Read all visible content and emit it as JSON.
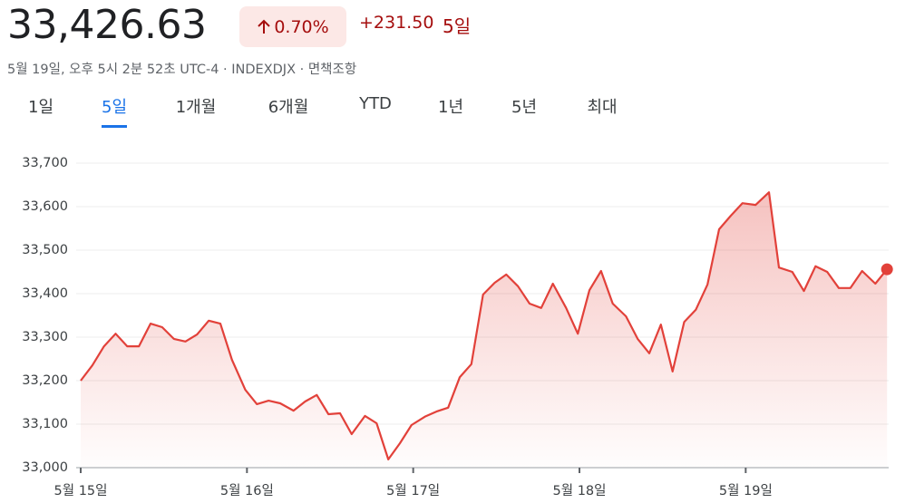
{
  "header": {
    "price": "33,426.63",
    "change_percent": "0.70%",
    "change": "+231.50",
    "period": "5일",
    "subtitle": "5월 19일, 오후 5시 2분 52초 UTC-4 · INDEXDJX · 면책조항"
  },
  "tabs": [
    "1일",
    "5일",
    "1개월",
    "6개월",
    "YTD",
    "1년",
    "5년",
    "최대"
  ],
  "selected_tab": 1,
  "chart_data": {
    "type": "line",
    "color": "#e2413a",
    "x": [
      0,
      0.07,
      0.14,
      0.21,
      0.28,
      0.35,
      0.42,
      0.49,
      0.56,
      0.63,
      0.7,
      0.77,
      0.84,
      0.91,
      0.99,
      1.06,
      1.13,
      1.2,
      1.28,
      1.35,
      1.42,
      1.49,
      1.56,
      1.63,
      1.71,
      1.78,
      1.85,
      1.92,
      1.99,
      2.07,
      2.14,
      2.21,
      2.28,
      2.35,
      2.42,
      2.49,
      2.56,
      2.63,
      2.7,
      2.77,
      2.84,
      2.92,
      2.99,
      3.06,
      3.13,
      3.2,
      3.28,
      3.35,
      3.42,
      3.49,
      3.56,
      3.63,
      3.7,
      3.77,
      3.84,
      3.91,
      3.98,
      4.06,
      4.14,
      4.2,
      4.28,
      4.35,
      4.42,
      4.49,
      4.56,
      4.63,
      4.7,
      4.78,
      4.85
    ],
    "values": [
      33200,
      33235,
      33279,
      33308,
      33279,
      33279,
      33331,
      33323,
      33296,
      33290,
      33306,
      33338,
      33331,
      33248,
      33179,
      33146,
      33154,
      33148,
      33131,
      33152,
      33167,
      33123,
      33125,
      33077,
      33119,
      33102,
      33019,
      33056,
      33098,
      33117,
      33129,
      33138,
      33208,
      33238,
      33398,
      33425,
      33444,
      33417,
      33377,
      33367,
      33423,
      33367,
      33308,
      33408,
      33452,
      33377,
      33348,
      33296,
      33263,
      33329,
      33221,
      33335,
      33363,
      33421,
      33548,
      33579,
      33608,
      33604,
      33633,
      33460,
      33450,
      33406,
      33463,
      33450,
      33413,
      33413,
      33452,
      33423,
      33456
    ],
    "xlim": [
      0,
      4.86
    ],
    "ylim": [
      33000,
      33700
    ],
    "xticks": [
      {
        "value": 0,
        "label": "5월 15일"
      },
      {
        "value": 1,
        "label": "5월 16일"
      },
      {
        "value": 2,
        "label": "5월 17일"
      },
      {
        "value": 3,
        "label": "5월 18일"
      },
      {
        "value": 4,
        "label": "5월 19일"
      }
    ],
    "yticks": [
      {
        "value": 33000,
        "label": "33,000"
      },
      {
        "value": 33100,
        "label": "33,100"
      },
      {
        "value": 33200,
        "label": "33,200"
      },
      {
        "value": 33300,
        "label": "33,300"
      },
      {
        "value": 33400,
        "label": "33,400"
      },
      {
        "value": 33500,
        "label": "33,500"
      },
      {
        "value": 33600,
        "label": "33,600"
      },
      {
        "value": 33700,
        "label": "33,700"
      }
    ],
    "grid": true
  }
}
